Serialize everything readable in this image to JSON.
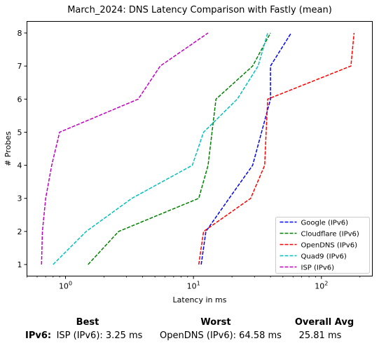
{
  "chart_data": {
    "type": "line",
    "title": "March_2024: DNS Latency Comparison with Fastly (mean)",
    "xlabel": "Latency in ms",
    "ylabel": "# Probes",
    "xscale": "log",
    "xlim": [
      0.5,
      250
    ],
    "ylim": [
      0.65,
      8.35
    ],
    "x_ticks": [
      {
        "value": 1,
        "label": "10^0"
      },
      {
        "value": 10,
        "label": "10^1"
      },
      {
        "value": 100,
        "label": "10^2"
      }
    ],
    "y_ticks": [
      1,
      2,
      3,
      4,
      5,
      6,
      7,
      8
    ],
    "grid": false,
    "legend_position": "lower-right",
    "series": [
      {
        "name": "Google (IPv6)",
        "color": "#0000ff",
        "x": [
          11.5,
          12.5,
          19,
          29,
          40,
          40,
          58
        ],
        "y": [
          1,
          2,
          3,
          4,
          6,
          7,
          8
        ]
      },
      {
        "name": "Cloudflare (IPv6)",
        "color": "#008000",
        "x": [
          1.5,
          2.6,
          11,
          13,
          15,
          29,
          40
        ],
        "y": [
          1,
          2,
          3,
          4,
          6,
          7,
          8
        ]
      },
      {
        "name": "OpenDNS (IPv6)",
        "color": "#ff0000",
        "x": [
          11,
          12,
          28,
          36,
          37,
          38,
          170,
          180
        ],
        "y": [
          1,
          2,
          3,
          4,
          5,
          6,
          7,
          8
        ]
      },
      {
        "name": "Quad9 (IPv6)",
        "color": "#00bfbf",
        "x": [
          0.8,
          1.45,
          3.3,
          9.8,
          12,
          22,
          32,
          38
        ],
        "y": [
          1,
          2,
          3,
          4,
          5,
          6,
          7,
          8
        ]
      },
      {
        "name": "ISP (IPv6)",
        "color": "#bf00bf",
        "x": [
          0.65,
          0.66,
          0.7,
          0.78,
          0.9,
          3.7,
          5.5,
          13
        ],
        "y": [
          1,
          2,
          3,
          4,
          5,
          6,
          7,
          8
        ]
      }
    ]
  },
  "summary": {
    "headers": {
      "best": "Best",
      "worst": "Worst",
      "overall": "Overall Avg"
    },
    "row_label": "IPv6:",
    "best": "ISP (IPv6): 3.25 ms",
    "worst": "OpenDNS (IPv6): 64.58 ms",
    "overall": "25.81 ms"
  }
}
